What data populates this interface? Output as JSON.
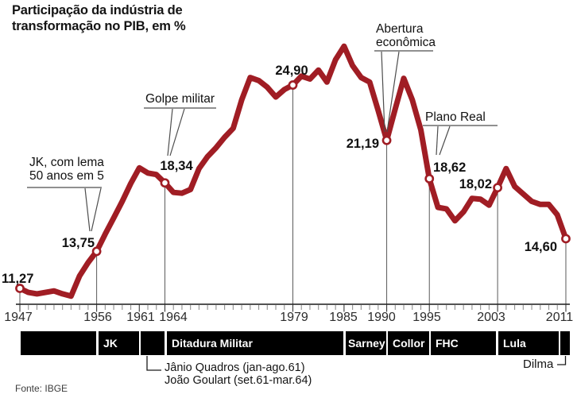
{
  "title": "Participação da indústria de transformação no PIB, em %",
  "source": "Fonte: IBGE",
  "colors": {
    "line": "#A01D24",
    "marker_fill": "#FFFFFF",
    "timeline_bar": "#000000",
    "timeline_text": "#FFFFFF",
    "axis": "#1A1A1A",
    "tick_minor": "#919191",
    "tick_major": "#3A3A3A",
    "reference_line": "#5A5A5A",
    "callout_line": "#4D4D4D",
    "label_text": "#111111",
    "year_text": "#2B2B2B"
  },
  "chart_data": {
    "type": "line",
    "title": "Participação da indústria de transformação no PIB, em %",
    "ylabel": "%",
    "grid": false,
    "start_year": 1947,
    "end_year": 2011,
    "values": [
      11.27,
      11.0,
      10.9,
      11.0,
      11.1,
      10.9,
      10.75,
      12.1,
      13.0,
      13.75,
      14.9,
      16.0,
      17.1,
      18.3,
      19.35,
      19.0,
      18.9,
      18.34,
      17.7,
      17.65,
      17.9,
      19.3,
      20.1,
      20.7,
      21.4,
      22.0,
      23.9,
      25.4,
      25.2,
      24.75,
      24.1,
      24.6,
      24.9,
      25.5,
      25.3,
      25.9,
      25.1,
      26.6,
      27.5,
      26.2,
      25.4,
      25.1,
      23.2,
      21.19,
      23.3,
      25.35,
      23.9,
      21.9,
      18.62,
      16.7,
      16.6,
      15.8,
      16.4,
      17.3,
      17.25,
      16.85,
      18.02,
      19.3,
      18.1,
      17.6,
      17.1,
      16.9,
      16.9,
      16.2,
      14.6
    ],
    "x_label_years": [
      1947,
      1956,
      1961,
      1964,
      1979,
      1985,
      1990,
      1995,
      2003,
      2011
    ],
    "labeled_points": [
      {
        "year": 1947,
        "value": 11.27,
        "label": "11,27"
      },
      {
        "year": 1956,
        "value": 13.75,
        "label": "13,75"
      },
      {
        "year": 1964,
        "value": 18.34,
        "label": "18,34"
      },
      {
        "year": 1979,
        "value": 24.9,
        "label": "24,90"
      },
      {
        "year": 1990,
        "value": 21.19,
        "label": "21,19"
      },
      {
        "year": 1995,
        "value": 18.62,
        "label": "18,62"
      },
      {
        "year": 2003,
        "value": 18.02,
        "label": "18,02"
      },
      {
        "year": 2011,
        "value": 14.6,
        "label": "14,60"
      }
    ],
    "annotations": [
      {
        "id": "jk",
        "lines": [
          "JK, com lema",
          "50 anos em 5"
        ],
        "target_year": 1956
      },
      {
        "id": "golpe",
        "lines": [
          "Golpe militar"
        ],
        "target_year": 1964
      },
      {
        "id": "abertura",
        "lines": [
          "Abertura",
          "econômica"
        ],
        "target_year": 1990
      },
      {
        "id": "plano",
        "lines": [
          "Plano Real"
        ],
        "target_year": 1995
      }
    ]
  },
  "timeline": {
    "bars": [
      {
        "label": "",
        "start": 1947,
        "end": 1956
      },
      {
        "label": "JK",
        "start": 1956,
        "end": 1961
      },
      {
        "label": "",
        "start": 1961,
        "end": 1964
      },
      {
        "label": "Ditadura Militar",
        "start": 1964,
        "end": 1985
      },
      {
        "label": "Sarney",
        "start": 1985,
        "end": 1990
      },
      {
        "label": "Collor",
        "start": 1990,
        "end": 1995
      },
      {
        "label": "FHC",
        "start": 1995,
        "end": 2003
      },
      {
        "label": "Lula",
        "start": 2003,
        "end": 2011
      },
      {
        "label": "",
        "start": 2011,
        "end": 2011.5
      }
    ],
    "notes": {
      "janio_line1": "Jânio Quadros (jan-ago.61)",
      "janio_line2": "João Goulart (set.61-mar.64)",
      "dilma": "Dilma"
    }
  }
}
